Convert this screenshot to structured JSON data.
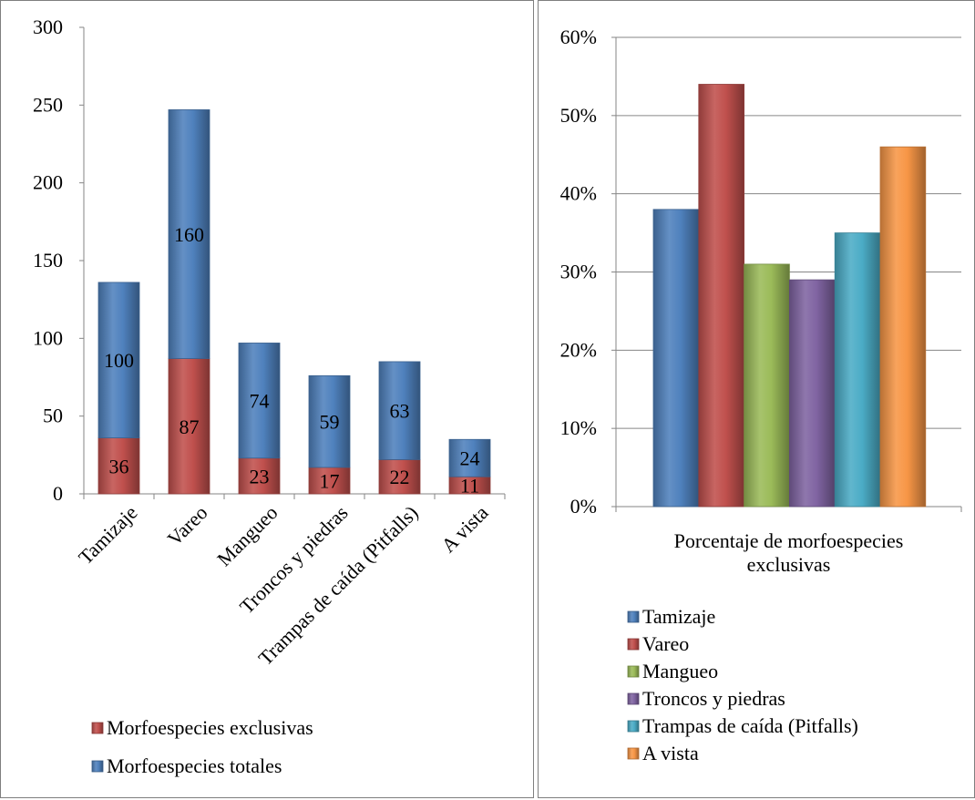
{
  "chart_data": [
    {
      "type": "bar",
      "stacked": true,
      "categories": [
        "Tamizaje",
        "Vareo",
        "Mangueo",
        "Troncos y piedras",
        "Trampas de caída (Pitfalls)",
        "A vista"
      ],
      "series": [
        {
          "name": "Morfoespecies exclusivas",
          "values": [
            36,
            87,
            23,
            17,
            22,
            11
          ],
          "color": "#c0504d"
        },
        {
          "name": "Morfoespecies totales",
          "values": [
            100,
            160,
            74,
            59,
            63,
            24
          ],
          "color": "#4f81bd"
        }
      ],
      "ylim": [
        0,
        300
      ],
      "yticks": [
        "0",
        "50",
        "100",
        "150",
        "200",
        "250",
        "300"
      ],
      "grid": false,
      "legend_position": "bottom"
    },
    {
      "type": "bar",
      "categories": [
        "Porcentaje de morfoespecies exclusivas"
      ],
      "series": [
        {
          "name": "Tamizaje",
          "values": [
            0.38
          ],
          "color": "#4f81bd"
        },
        {
          "name": "Vareo",
          "values": [
            0.54
          ],
          "color": "#c0504d"
        },
        {
          "name": "Mangueo",
          "values": [
            0.31
          ],
          "color": "#9bbb59"
        },
        {
          "name": "Troncos y piedras",
          "values": [
            0.29
          ],
          "color": "#8064a2"
        },
        {
          "name": "Trampas de caída (Pitfalls)",
          "values": [
            0.35
          ],
          "color": "#4bacc6"
        },
        {
          "name": "A vista",
          "values": [
            0.46
          ],
          "color": "#f79646"
        }
      ],
      "ylim": [
        0,
        0.6
      ],
      "yticks": [
        "0%",
        "10%",
        "20%",
        "30%",
        "40%",
        "50%",
        "60%"
      ],
      "grid": true,
      "legend_position": "bottom"
    }
  ]
}
